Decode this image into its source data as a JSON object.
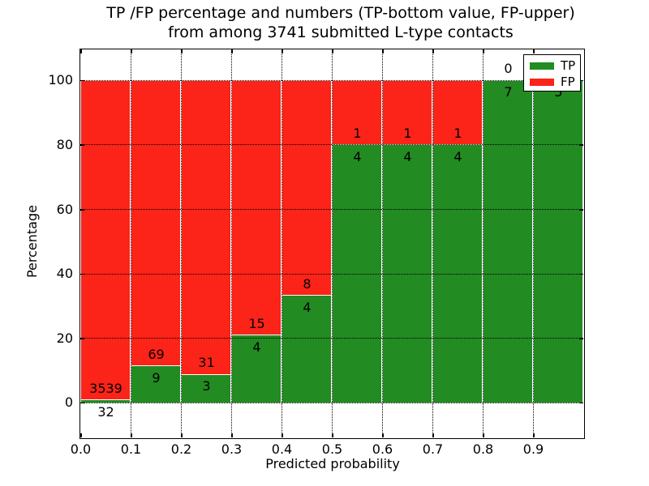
{
  "title": {
    "line1": "TP /FP percentage and numbers (TP-bottom value, FP-upper)",
    "line2": "from among 3741 submitted L-type contacts"
  },
  "axes": {
    "xlabel": "Predicted probability",
    "ylabel": "Percentage",
    "x_tick_labels": [
      "0.0",
      "0.1",
      "0.2",
      "0.3",
      "0.4",
      "0.5",
      "0.6",
      "0.7",
      "0.8",
      "0.9"
    ],
    "y_tick_labels": [
      "0",
      "20",
      "40",
      "60",
      "80",
      "100"
    ],
    "y_tick_values": [
      0,
      20,
      40,
      60,
      80,
      100
    ]
  },
  "legend": {
    "entries": [
      {
        "label": "TP",
        "color": "#228b22"
      },
      {
        "label": "FP",
        "color": "#fc2318"
      }
    ]
  },
  "colors": {
    "tp": "#228b22",
    "fp": "#fc2318",
    "bar_edge": "#ffffff",
    "grid": "#000000"
  },
  "chart_data": {
    "type": "bar",
    "stacked": true,
    "normalized_to_percent": true,
    "title": "TP /FP percentage and numbers (TP-bottom value, FP-upper) from among 3741 submitted L-type contacts",
    "xlabel": "Predicted probability",
    "ylabel": "Percentage",
    "categories": [
      "0.0-0.1",
      "0.1-0.2",
      "0.2-0.3",
      "0.3-0.4",
      "0.4-0.5",
      "0.5-0.6",
      "0.6-0.7",
      "0.7-0.8",
      "0.8-0.9",
      "0.9-1.0"
    ],
    "bin_edges": [
      0.0,
      0.1,
      0.2,
      0.3,
      0.4,
      0.5,
      0.6,
      0.7,
      0.8,
      0.9,
      1.0
    ],
    "series": [
      {
        "name": "TP",
        "color": "#228b22",
        "values": [
          32,
          9,
          3,
          4,
          4,
          4,
          4,
          4,
          7,
          5
        ]
      },
      {
        "name": "FP",
        "color": "#fc2318",
        "values": [
          3539,
          69,
          31,
          15,
          8,
          1,
          1,
          1,
          0,
          0
        ]
      }
    ],
    "tp_percent": [
      0.9,
      11.5,
      8.8,
      21.1,
      33.3,
      80.0,
      80.0,
      80.0,
      100.0,
      100.0
    ],
    "total_contacts": 3741,
    "xlim": [
      0.0,
      1.0
    ],
    "ylim": [
      -10.8,
      109.5
    ],
    "grid": "dotted",
    "legend_position": "upper right"
  }
}
